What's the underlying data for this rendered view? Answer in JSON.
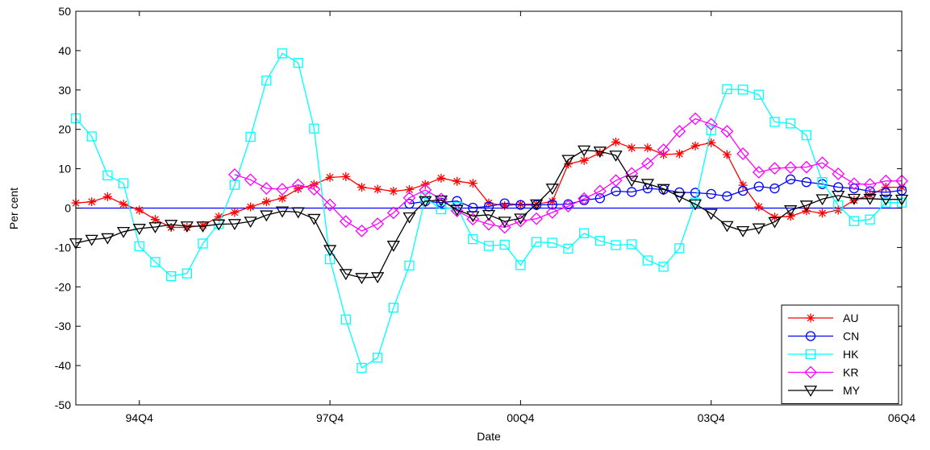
{
  "chart_data": {
    "type": "line",
    "xlabel": "Date",
    "ylabel": "Per cent",
    "ylim": [
      -50,
      50
    ],
    "yticks": [
      -50,
      -40,
      -30,
      -20,
      -10,
      0,
      10,
      20,
      30,
      40,
      50
    ],
    "xlim_quarters": [
      "93Q4",
      "06Q4"
    ],
    "xticks": [
      "94Q4",
      "97Q4",
      "00Q4",
      "03Q4",
      "06Q4"
    ],
    "reference_line": {
      "y": 0,
      "color": "#0000ff"
    },
    "legend": {
      "position": "bottom-right",
      "entries": [
        "AU",
        "CN",
        "HK",
        "KR",
        "MY"
      ]
    },
    "series": [
      {
        "name": "AU",
        "color": "#ff0000",
        "marker": "asterisk",
        "x": [
          "93Q4",
          "94Q1",
          "94Q2",
          "94Q3",
          "94Q4",
          "95Q1",
          "95Q2",
          "95Q3",
          "95Q4",
          "96Q1",
          "96Q2",
          "96Q3",
          "96Q4",
          "97Q1",
          "97Q2",
          "97Q3",
          "97Q4",
          "98Q1",
          "98Q2",
          "98Q3",
          "98Q4",
          "99Q1",
          "99Q2",
          "99Q3",
          "99Q4",
          "00Q1",
          "00Q2",
          "00Q3",
          "00Q4",
          "01Q1",
          "01Q2",
          "01Q3",
          "01Q4",
          "02Q1",
          "02Q2",
          "02Q3",
          "02Q4",
          "03Q1",
          "03Q2",
          "03Q3",
          "03Q4",
          "04Q1",
          "04Q2",
          "04Q3",
          "04Q4",
          "05Q1",
          "05Q2",
          "05Q3",
          "05Q4",
          "06Q1",
          "06Q2",
          "06Q3",
          "06Q4"
        ],
        "values": [
          1.3,
          1.6,
          2.9,
          1.0,
          -0.5,
          -2.9,
          -4.9,
          -4.9,
          -4.4,
          -2.2,
          -1.1,
          0.3,
          1.6,
          2.5,
          4.9,
          6.0,
          7.8,
          8.0,
          5.3,
          4.8,
          4.3,
          4.7,
          6.0,
          7.6,
          6.8,
          6.3,
          1.3,
          0.6,
          1.0,
          1.0,
          1.7,
          11.2,
          12.1,
          14.0,
          16.8,
          15.3,
          15.3,
          13.6,
          13.8,
          15.8,
          16.6,
          13.6,
          5.8,
          0.3,
          -2.3,
          -2.1,
          -0.7,
          -1.3,
          -0.5,
          2.0,
          3.3,
          5.3,
          5.3
        ]
      },
      {
        "name": "CN",
        "color": "#0000ff",
        "marker": "circle",
        "x": [
          "99Q1",
          "99Q2",
          "99Q3",
          "99Q4",
          "00Q1",
          "00Q2",
          "00Q3",
          "00Q4",
          "01Q1",
          "01Q2",
          "01Q3",
          "01Q4",
          "02Q1",
          "02Q2",
          "02Q3",
          "02Q4",
          "03Q1",
          "03Q2",
          "03Q3",
          "03Q4",
          "04Q1",
          "04Q2",
          "04Q3",
          "04Q4",
          "05Q1",
          "05Q2",
          "05Q3",
          "05Q4",
          "06Q1",
          "06Q2",
          "06Q3",
          "06Q4"
        ],
        "values": [
          1.1,
          1.7,
          1.4,
          1.8,
          0.1,
          0.4,
          1.2,
          0.8,
          0.8,
          0.9,
          1.0,
          2.0,
          2.5,
          4.3,
          4.1,
          5.0,
          4.7,
          4.0,
          3.9,
          3.6,
          3.0,
          4.4,
          5.5,
          5.0,
          7.3,
          6.6,
          6.1,
          5.3,
          5.0,
          4.3,
          4.0,
          4.5
        ]
      },
      {
        "name": "HK",
        "color": "#00ffff",
        "marker": "square",
        "x": [
          "93Q4",
          "94Q1",
          "94Q2",
          "94Q3",
          "94Q4",
          "95Q1",
          "95Q2",
          "95Q3",
          "95Q4",
          "96Q1",
          "96Q2",
          "96Q3",
          "96Q4",
          "97Q1",
          "97Q2",
          "97Q3",
          "97Q4",
          "98Q1",
          "98Q2",
          "98Q3",
          "98Q4",
          "99Q1",
          "99Q2",
          "99Q3",
          "99Q4",
          "00Q1",
          "00Q2",
          "00Q3",
          "00Q4",
          "01Q1",
          "01Q2",
          "01Q3",
          "01Q4",
          "02Q1",
          "02Q2",
          "02Q3",
          "02Q4",
          "03Q1",
          "03Q2",
          "03Q3",
          "03Q4",
          "04Q1",
          "04Q2",
          "04Q3",
          "04Q4",
          "05Q1",
          "05Q2",
          "05Q3",
          "05Q4",
          "06Q1",
          "06Q2",
          "06Q3",
          "06Q4"
        ],
        "values": [
          22.8,
          18.2,
          8.3,
          6.3,
          -9.7,
          -13.7,
          -17.3,
          -16.6,
          -9.0,
          -4.0,
          5.9,
          18.1,
          32.4,
          39.3,
          36.9,
          20.2,
          -13.0,
          -28.3,
          -40.6,
          -38.0,
          -25.3,
          -14.6,
          2.7,
          -0.3,
          0.3,
          -7.9,
          -9.6,
          -9.3,
          -14.5,
          -8.6,
          -8.8,
          -10.3,
          -6.4,
          -8.3,
          -9.4,
          -9.2,
          -13.3,
          -14.9,
          -10.2,
          1.4,
          19.8,
          30.2,
          30.1,
          28.8,
          21.9,
          21.5,
          18.5,
          6.6,
          0.7,
          -3.3,
          -2.9,
          1.4,
          1.4
        ]
      },
      {
        "name": "KR",
        "color": "#ff00ff",
        "marker": "diamond",
        "x": [
          "96Q2",
          "96Q3",
          "96Q4",
          "97Q1",
          "97Q2",
          "97Q3",
          "97Q4",
          "98Q1",
          "98Q2",
          "98Q3",
          "98Q4",
          "99Q1",
          "99Q2",
          "99Q3",
          "99Q4",
          "00Q1",
          "00Q2",
          "00Q3",
          "00Q4",
          "01Q1",
          "01Q2",
          "01Q3",
          "01Q4",
          "02Q1",
          "02Q2",
          "02Q3",
          "02Q4",
          "03Q1",
          "03Q2",
          "03Q3",
          "03Q4",
          "04Q1",
          "04Q2",
          "04Q3",
          "04Q4",
          "05Q1",
          "05Q2",
          "05Q3",
          "05Q4",
          "06Q1",
          "06Q2",
          "06Q3",
          "06Q4"
        ],
        "values": [
          8.5,
          7.2,
          5.0,
          4.8,
          5.9,
          4.8,
          0.8,
          -3.4,
          -5.8,
          -4.0,
          -1.2,
          2.6,
          4.6,
          2.3,
          -0.7,
          -2.8,
          -4.1,
          -4.9,
          -3.3,
          -2.7,
          -1.1,
          0.5,
          2.4,
          4.3,
          7.0,
          8.8,
          11.3,
          14.8,
          19.5,
          22.7,
          21.3,
          19.5,
          13.8,
          9.1,
          10.1,
          10.3,
          10.4,
          11.5,
          8.7,
          6.2,
          6.0,
          6.9,
          6.9
        ]
      },
      {
        "name": "MY",
        "color": "#000000",
        "marker": "triangle-down",
        "x": [
          "93Q4",
          "94Q1",
          "94Q2",
          "94Q3",
          "94Q4",
          "95Q1",
          "95Q2",
          "95Q3",
          "95Q4",
          "96Q1",
          "96Q2",
          "96Q3",
          "96Q4",
          "97Q1",
          "97Q2",
          "97Q3",
          "97Q4",
          "98Q1",
          "98Q2",
          "98Q3",
          "98Q4",
          "99Q1",
          "99Q2",
          "99Q3",
          "99Q4",
          "00Q1",
          "00Q2",
          "00Q3",
          "00Q4",
          "01Q1",
          "01Q2",
          "01Q3",
          "01Q4",
          "02Q1",
          "02Q2",
          "02Q3",
          "02Q4",
          "03Q1",
          "03Q2",
          "03Q3",
          "03Q4",
          "04Q1",
          "04Q2",
          "04Q3",
          "04Q4",
          "05Q1",
          "05Q2",
          "05Q3",
          "05Q4",
          "06Q1",
          "06Q2",
          "06Q3",
          "06Q4"
        ],
        "values": [
          -8.9,
          -8.0,
          -7.6,
          -6.0,
          -5.2,
          -4.8,
          -4.2,
          -4.6,
          -4.6,
          -4.1,
          -4.0,
          -3.4,
          -1.8,
          -0.8,
          -1.0,
          -2.7,
          -10.6,
          -16.7,
          -17.7,
          -17.5,
          -9.5,
          -2.3,
          1.8,
          2.0,
          -0.4,
          -2.0,
          -1.7,
          -3.4,
          -2.6,
          1.0,
          5.0,
          12.3,
          14.7,
          14.4,
          13.4,
          7.0,
          6.2,
          4.9,
          2.9,
          1.0,
          -1.4,
          -4.5,
          -5.8,
          -5.1,
          -3.5,
          -0.5,
          0.7,
          2.3,
          3.2,
          2.4,
          2.4,
          2.2,
          2.2
        ]
      }
    ]
  }
}
